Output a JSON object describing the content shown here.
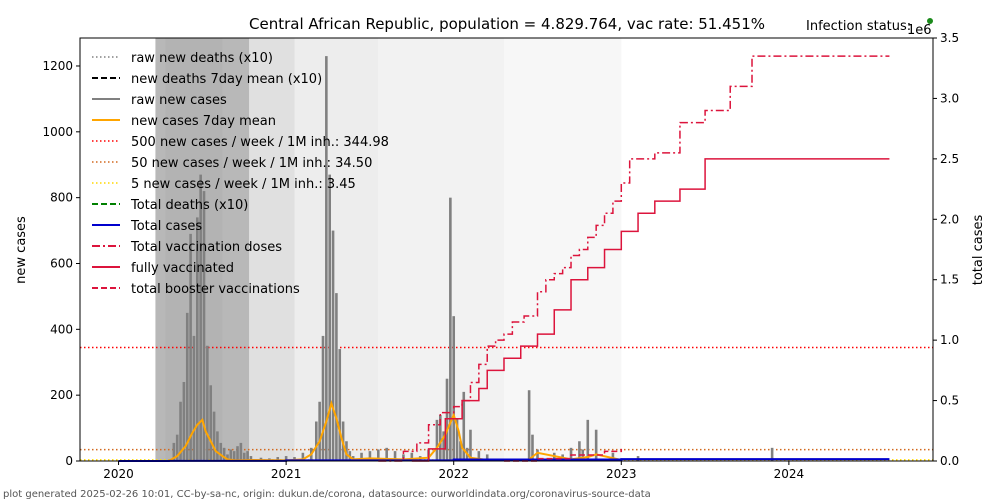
{
  "chart_data": {
    "type": "line",
    "title": "Central African Republic, population = 4.829.764, vac rate: 51.451%",
    "status_label": "Infection status:",
    "status_color": "#1a8a1a",
    "xlabel": "",
    "ylabel": "new cases",
    "y2label": "total cases",
    "y2_offset_label": "1e6",
    "footer": "plot generated 2025-02-26 10:01, CC-by-sa-nc, origin: dukun.de/corona, datasource: ourworldindata.org/coronavirus-source-data",
    "xlim": [
      2019.77,
      2024.86
    ],
    "ylim": [
      0,
      1285
    ],
    "y2lim": [
      0,
      3.5
    ],
    "x_ticks": [
      2020,
      2021,
      2022,
      2023,
      2024
    ],
    "y_ticks": [
      0,
      200,
      400,
      600,
      800,
      1000,
      1200
    ],
    "y2_ticks": [
      "0.0",
      "0.5",
      "1.0",
      "1.5",
      "2.0",
      "2.5",
      "3.0",
      "3.5"
    ],
    "legend": {
      "placement": "top-left",
      "entries": [
        {
          "label": "raw new deaths (x10)",
          "color": "#808080",
          "style": "dotted"
        },
        {
          "label": "new deaths 7day mean (x10)",
          "color": "#000000",
          "style": "dashed"
        },
        {
          "label": "raw new cases",
          "color": "#808080",
          "style": "solid"
        },
        {
          "label": "new cases 7day mean",
          "color": "#ffa500",
          "style": "solid"
        },
        {
          "label": "500 new cases / week / 1M inh.: 344.98",
          "color": "#ff0000",
          "style": "dotted"
        },
        {
          "label": "50 new cases / week / 1M inh.: 34.50",
          "color": "#d2691e",
          "style": "dotted"
        },
        {
          "label": "5 new cases / week / 1M inh.: 3.45",
          "color": "#ffd700",
          "style": "dotted"
        },
        {
          "label": "Total deaths (x10)",
          "color": "#008000",
          "style": "dashed"
        },
        {
          "label": "Total cases",
          "color": "#0000cd",
          "style": "solid"
        },
        {
          "label": "Total vaccination doses",
          "color": "#dc143c",
          "style": "dashdot"
        },
        {
          "label": "fully vaccinated",
          "color": "#dc143c",
          "style": "solid"
        },
        {
          "label": "total booster vaccinations",
          "color": "#dc143c",
          "style": "dashed"
        }
      ]
    },
    "threshold_lines": [
      {
        "name": "500-per-week",
        "value": 344.98,
        "color": "#ff0000"
      },
      {
        "name": "50-per-week",
        "value": 34.5,
        "color": "#d2691e"
      },
      {
        "name": "5-per-week",
        "value": 3.45,
        "color": "#ffd700"
      }
    ],
    "shading_bands": [
      {
        "start": 2020.22,
        "end": 2020.78,
        "shade": 0.72
      },
      {
        "start": 2020.28,
        "end": 2020.62,
        "shade": 0.7
      },
      {
        "start": 2020.78,
        "end": 2021.05,
        "shade": 0.88
      },
      {
        "start": 2021.05,
        "end": 2021.55,
        "shade": 0.93
      },
      {
        "start": 2021.55,
        "end": 2022.3,
        "shade": 0.95
      },
      {
        "start": 2022.3,
        "end": 2023.0,
        "shade": 0.97
      }
    ],
    "raw_new_cases": {
      "x": [
        2020.33,
        2020.35,
        2020.37,
        2020.39,
        2020.41,
        2020.43,
        2020.45,
        2020.47,
        2020.49,
        2020.51,
        2020.53,
        2020.55,
        2020.57,
        2020.59,
        2020.61,
        2020.63,
        2020.65,
        2020.67,
        2020.69,
        2020.71,
        2020.73,
        2020.75,
        2020.77,
        2020.79,
        2020.85,
        2020.9,
        2020.95,
        2021.0,
        2021.05,
        2021.1,
        2021.15,
        2021.18,
        2021.2,
        2021.22,
        2021.24,
        2021.26,
        2021.28,
        2021.3,
        2021.32,
        2021.34,
        2021.36,
        2021.38,
        2021.4,
        2021.45,
        2021.5,
        2021.55,
        2021.6,
        2021.65,
        2021.7,
        2021.75,
        2021.8,
        2021.85,
        2021.9,
        2021.92,
        2021.94,
        2021.96,
        2021.98,
        2022.0,
        2022.02,
        2022.04,
        2022.06,
        2022.08,
        2022.1,
        2022.15,
        2022.2,
        2022.45,
        2022.47,
        2022.5,
        2022.6,
        2022.65,
        2022.7,
        2022.75,
        2022.77,
        2022.8,
        2022.85,
        2022.95,
        2023.1,
        2023.9
      ],
      "y": [
        55,
        80,
        180,
        240,
        450,
        690,
        380,
        740,
        870,
        820,
        350,
        230,
        150,
        90,
        55,
        40,
        20,
        35,
        30,
        45,
        55,
        25,
        30,
        15,
        10,
        8,
        12,
        15,
        12,
        25,
        40,
        120,
        180,
        380,
        1230,
        870,
        700,
        510,
        340,
        120,
        60,
        30,
        15,
        25,
        30,
        35,
        40,
        30,
        20,
        25,
        15,
        35,
        125,
        140,
        90,
        250,
        800,
        440,
        130,
        60,
        210,
        40,
        95,
        30,
        20,
        215,
        80,
        35,
        25,
        20,
        40,
        60,
        35,
        125,
        95,
        25,
        15,
        40
      ]
    },
    "new_cases_7day_mean": {
      "x": [
        2020.3,
        2020.35,
        2020.4,
        2020.44,
        2020.47,
        2020.5,
        2020.52,
        2020.55,
        2020.58,
        2020.62,
        2020.65,
        2020.7,
        2020.8,
        2021.0,
        2021.1,
        2021.15,
        2021.2,
        2021.24,
        2021.27,
        2021.3,
        2021.33,
        2021.36,
        2021.4,
        2021.5,
        2021.7,
        2021.85,
        2021.9,
        2021.95,
        2022.0,
        2022.03,
        2022.05,
        2022.1,
        2022.2,
        2022.45,
        2022.5,
        2022.7,
        2022.8,
        2022.85,
        2023.0
      ],
      "y": [
        0,
        15,
        45,
        85,
        110,
        125,
        90,
        60,
        30,
        15,
        5,
        2,
        3,
        2,
        5,
        20,
        60,
        120,
        175,
        130,
        70,
        20,
        5,
        8,
        5,
        10,
        40,
        80,
        140,
        90,
        40,
        10,
        3,
        5,
        25,
        5,
        12,
        20,
        3
      ]
    },
    "total_cases_millions": {
      "x": [
        2020.0,
        2020.3,
        2021.0,
        2022.0,
        2023.0,
        2024.0,
        2024.6
      ],
      "y": [
        0.0,
        0.001,
        0.005,
        0.012,
        0.015,
        0.015,
        0.015
      ]
    },
    "total_vaccination_doses_millions": {
      "x": [
        2021.55,
        2021.7,
        2021.78,
        2021.85,
        2021.92,
        2022.0,
        2022.05,
        2022.1,
        2022.15,
        2022.2,
        2022.25,
        2022.3,
        2022.35,
        2022.42,
        2022.5,
        2022.55,
        2022.6,
        2022.65,
        2022.7,
        2022.75,
        2022.8,
        2022.85,
        2022.9,
        2022.95,
        2023.0,
        2023.05,
        2023.2,
        2023.35,
        2023.5,
        2023.65,
        2023.78,
        2024.0,
        2024.6
      ],
      "y": [
        0.0,
        0.08,
        0.15,
        0.3,
        0.4,
        0.45,
        0.5,
        0.65,
        0.8,
        0.95,
        1.0,
        1.05,
        1.15,
        1.2,
        1.4,
        1.5,
        1.55,
        1.6,
        1.7,
        1.75,
        1.85,
        1.95,
        2.05,
        2.15,
        2.3,
        2.5,
        2.55,
        2.8,
        2.9,
        3.1,
        3.35,
        3.35,
        3.35
      ]
    },
    "fully_vaccinated_millions": {
      "x": [
        2021.75,
        2021.85,
        2021.95,
        2022.05,
        2022.15,
        2022.2,
        2022.3,
        2022.4,
        2022.5,
        2022.6,
        2022.7,
        2022.8,
        2022.9,
        2023.0,
        2023.1,
        2023.2,
        2023.35,
        2023.5,
        2024.0,
        2024.6
      ],
      "y": [
        0.0,
        0.1,
        0.35,
        0.5,
        0.6,
        0.75,
        0.85,
        0.95,
        1.05,
        1.25,
        1.5,
        1.6,
        1.75,
        1.9,
        2.05,
        2.15,
        2.25,
        2.5,
        2.5,
        2.5
      ]
    },
    "total_booster_millions": {
      "x": [
        2022.3,
        2022.5,
        2022.7,
        2022.9,
        2023.0
      ],
      "y": [
        0.0,
        0.02,
        0.05,
        0.08,
        0.1
      ]
    }
  }
}
